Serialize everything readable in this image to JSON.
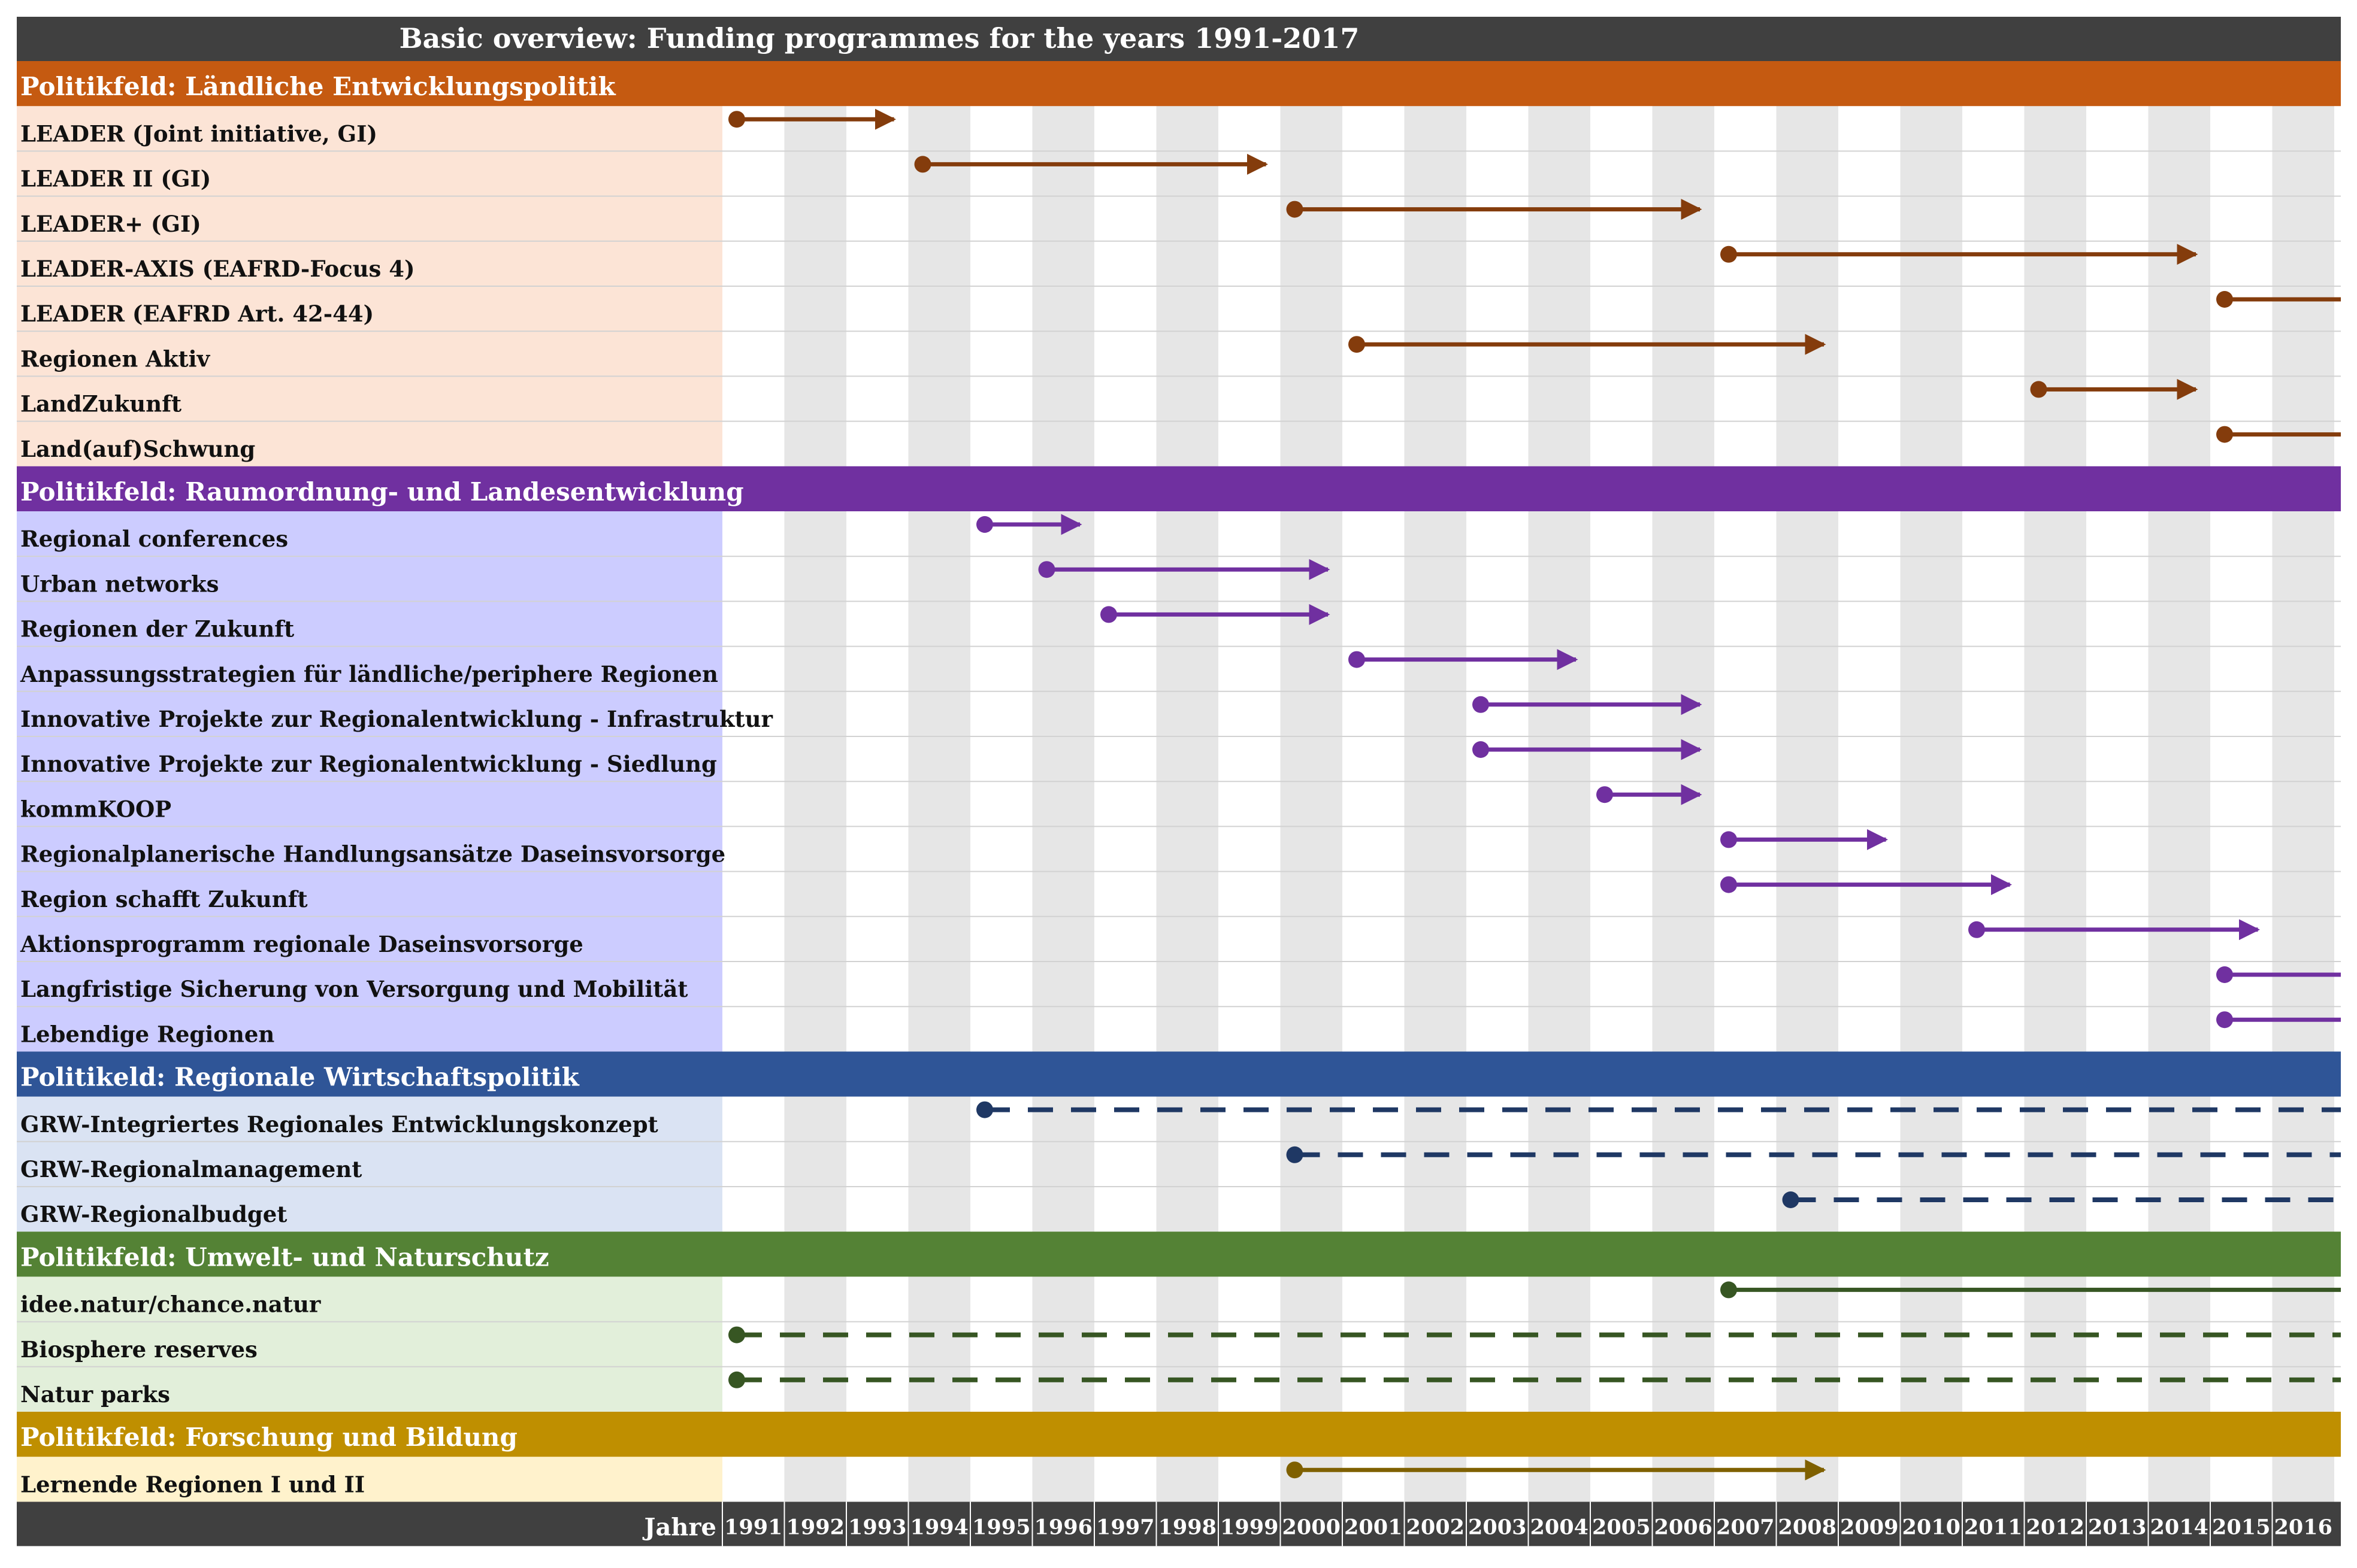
{
  "chart_data": {
    "type": "gantt",
    "title": "Basic overview: Funding programmes for the years 1991-2017",
    "xlabel": "Jahre",
    "years": [
      1991,
      1992,
      1993,
      1994,
      1995,
      1996,
      1997,
      1998,
      1999,
      2000,
      2001,
      2002,
      2003,
      2004,
      2005,
      2006,
      2007,
      2008,
      2009,
      2010,
      2011,
      2012,
      2013,
      2014,
      2015,
      2016
    ],
    "xlim": [
      1991,
      2017
    ],
    "groups": [
      {
        "category": "Politikfeld: Ländliche Entwicklungspolitik",
        "header_color": "#c55a11",
        "panel_color": "#fce4d6",
        "line_color": "#843c0c",
        "rows": [
          {
            "label": "LEADER (Joint initiative, GI)",
            "start": 1991,
            "end": 1994,
            "style": "arrow"
          },
          {
            "label": "LEADER II (GI)",
            "start": 1994,
            "end": 2000,
            "style": "arrow"
          },
          {
            "label": "LEADER+ (GI)",
            "start": 2000,
            "end": 2007,
            "style": "arrow"
          },
          {
            "label": "LEADER-AXIS (EAFRD-Focus 4)",
            "start": 2007,
            "end": 2015,
            "style": "arrow"
          },
          {
            "label": "LEADER (EAFRD Art. 42-44)",
            "start": 2015,
            "end": 2017,
            "style": "open"
          },
          {
            "label": "Regionen Aktiv",
            "start": 2001,
            "end": 2009,
            "style": "arrow"
          },
          {
            "label": "LandZukunft",
            "start": 2012,
            "end": 2015,
            "style": "arrow"
          },
          {
            "label": "Land(auf)Schwung",
            "start": 2015,
            "end": 2017,
            "style": "open"
          }
        ]
      },
      {
        "category": "Politikfeld: Raumordnung- und Landesentwicklung",
        "header_color": "#7030a0",
        "panel_color": "#ccccff",
        "line_color": "#7030a0",
        "rows": [
          {
            "label": "Regional conferences",
            "start": 1995,
            "end": 1997,
            "style": "arrow"
          },
          {
            "label": "Urban networks",
            "start": 1996,
            "end": 2001,
            "style": "arrow"
          },
          {
            "label": "Regionen der Zukunft",
            "start": 1997,
            "end": 2001,
            "style": "arrow"
          },
          {
            "label": "Anpassungsstrategien für ländliche/periphere Regionen",
            "start": 2001,
            "end": 2005,
            "style": "arrow"
          },
          {
            "label": "Innovative Projekte zur Regionalentwicklung - Infrastruktur",
            "start": 2003,
            "end": 2007,
            "style": "arrow"
          },
          {
            "label": "Innovative Projekte zur Regionalentwicklung - Siedlung",
            "start": 2003,
            "end": 2007,
            "style": "arrow"
          },
          {
            "label": "kommKOOP",
            "start": 2005,
            "end": 2007,
            "style": "arrow"
          },
          {
            "label": "Regionalplanerische Handlungsansätze Daseinsvorsorge",
            "start": 2007,
            "end": 2010,
            "style": "arrow"
          },
          {
            "label": "Region schafft Zukunft",
            "start": 2007,
            "end": 2012,
            "style": "arrow"
          },
          {
            "label": "Aktionsprogramm regionale Daseinsvorsorge",
            "start": 2011,
            "end": 2016,
            "style": "arrow"
          },
          {
            "label": "Langfristige Sicherung von Versorgung und Mobilität",
            "start": 2015,
            "end": 2017,
            "style": "open"
          },
          {
            "label": "Lebendige Regionen",
            "start": 2015,
            "end": 2017,
            "style": "open"
          }
        ]
      },
      {
        "category": "Politikeld: Regionale Wirtschaftspolitik",
        "header_color": "#2f5597",
        "panel_color": "#dae3f3",
        "line_color": "#1f3864",
        "rows": [
          {
            "label": "GRW-Integriertes Regionales Entwicklungskonzept",
            "start": 1995,
            "end": 2017,
            "style": "dashed"
          },
          {
            "label": "GRW-Regionalmanagement",
            "start": 2000,
            "end": 2017,
            "style": "dashed"
          },
          {
            "label": "GRW-Regionalbudget",
            "start": 2008,
            "end": 2017,
            "style": "dashed"
          }
        ]
      },
      {
        "category": "Politikfeld: Umwelt- und Naturschutz",
        "header_color": "#548235",
        "panel_color": "#e2efda",
        "line_color": "#375623",
        "rows": [
          {
            "label": "idee.natur/chance.natur",
            "start": 2007,
            "end": 2017,
            "style": "open"
          },
          {
            "label": "Biosphere reserves",
            "start": 1991,
            "end": 2017,
            "style": "dashed"
          },
          {
            "label": "Natur parks",
            "start": 1991,
            "end": 2017,
            "style": "dashed"
          }
        ]
      },
      {
        "category": "Politikfeld: Forschung und Bildung",
        "header_color": "#bf8f00",
        "panel_color": "#fff2cc",
        "line_color": "#7f6000",
        "rows": [
          {
            "label": "Lernende Regionen I und II",
            "start": 2000,
            "end": 2009,
            "style": "arrow"
          }
        ]
      }
    ]
  }
}
